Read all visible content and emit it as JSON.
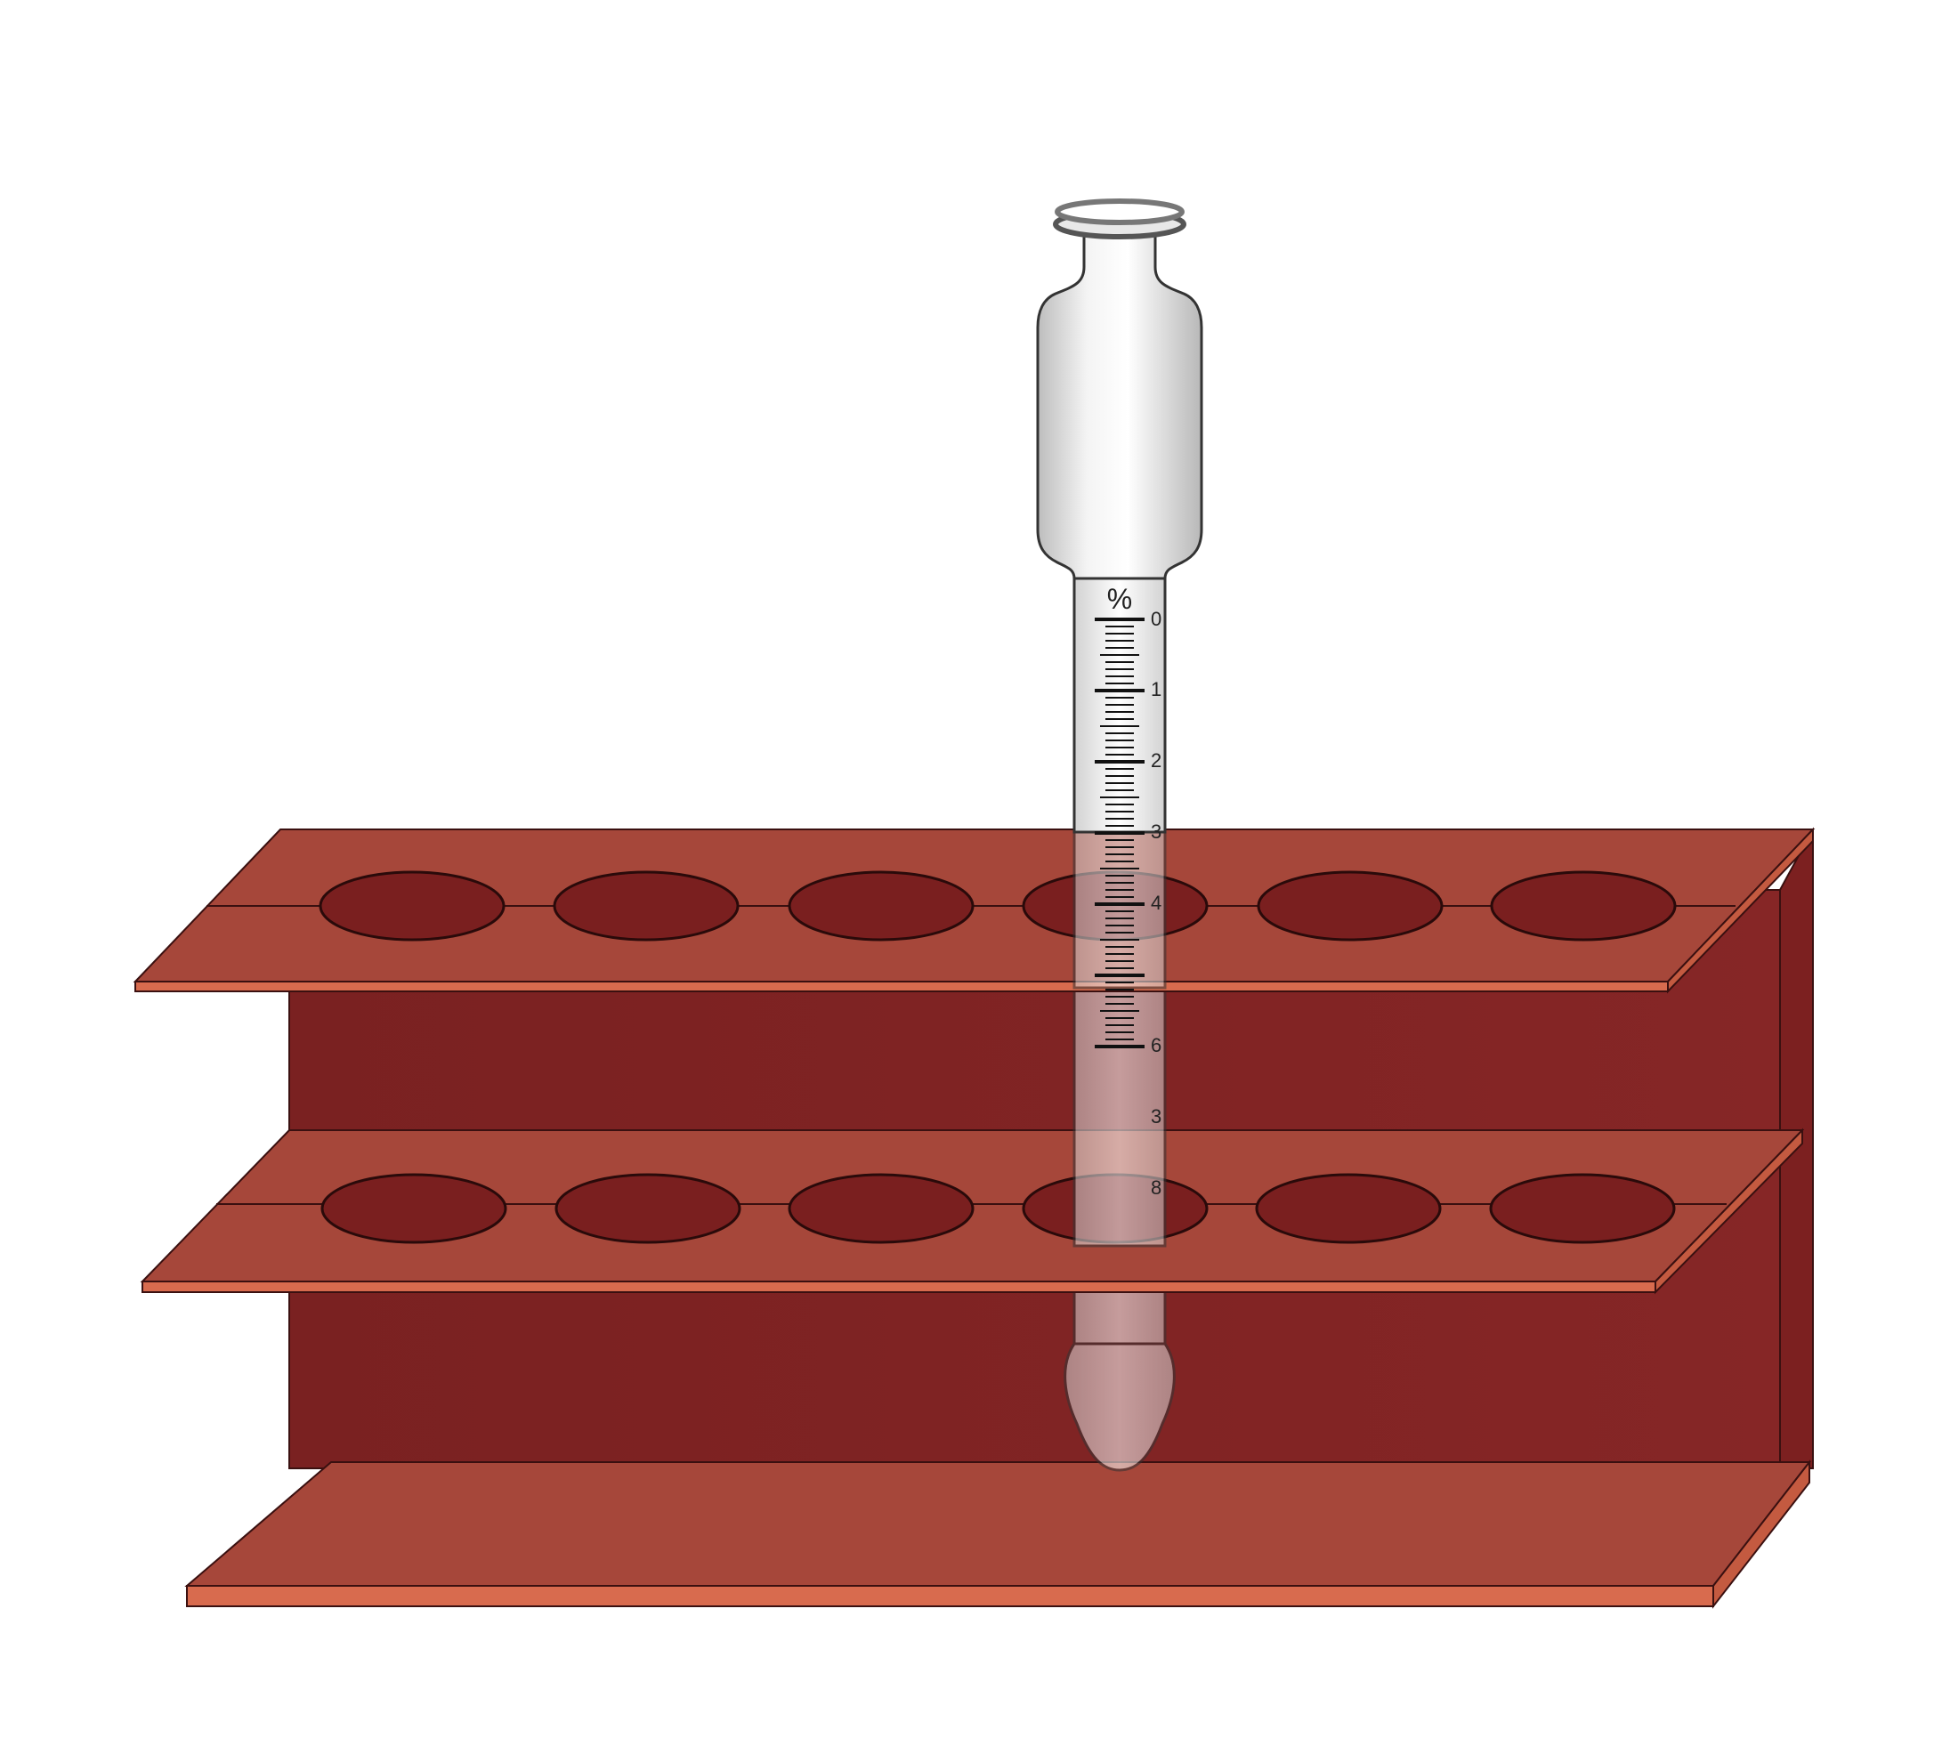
{
  "scene": {
    "colors": {
      "rack_face": "#7f2222",
      "rack_shelf": "#a6473a",
      "rack_edge": "#d86b4e",
      "hole": "#7a1f1f",
      "glass": "#e4e4e4",
      "outline": "#555555"
    },
    "rack": {
      "name": "test-tube-rack",
      "shelves": [
        {
          "name": "upper-shelf",
          "holes": 6
        },
        {
          "name": "lower-shelf",
          "holes": 6
        },
        {
          "name": "base-shelf",
          "holes": 0
        }
      ]
    },
    "butyrometer": {
      "unit_label": "%",
      "scale_labels": [
        "0",
        "1",
        "2",
        "3",
        "4",
        "6",
        "3",
        "8"
      ]
    }
  }
}
